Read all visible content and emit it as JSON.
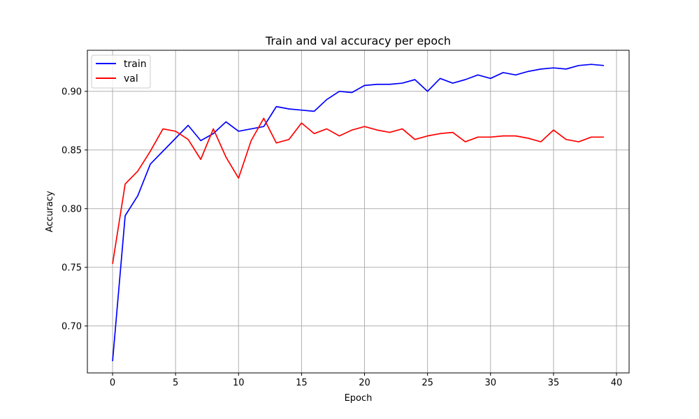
{
  "chart_data": {
    "type": "line",
    "title": "Train and val accuracy per epoch",
    "xlabel": "Epoch",
    "ylabel": "Accuracy",
    "xlim": [
      -2,
      41
    ],
    "ylim": [
      0.66,
      0.935
    ],
    "xticks": [
      0,
      5,
      10,
      15,
      20,
      25,
      30,
      35,
      40
    ],
    "yticks": [
      0.7,
      0.75,
      0.8,
      0.85,
      0.9
    ],
    "ytick_labels": [
      "0.70",
      "0.75",
      "0.80",
      "0.85",
      "0.90"
    ],
    "grid": true,
    "legend_position": "upper-left",
    "x": [
      0,
      1,
      2,
      3,
      4,
      5,
      6,
      7,
      8,
      9,
      10,
      11,
      12,
      13,
      14,
      15,
      16,
      17,
      18,
      19,
      20,
      21,
      22,
      23,
      24,
      25,
      26,
      27,
      28,
      29,
      30,
      31,
      32,
      33,
      34,
      35,
      36,
      37,
      38,
      39
    ],
    "series": [
      {
        "name": "train",
        "color": "#0000ff",
        "values": [
          0.67,
          0.794,
          0.811,
          0.838,
          0.849,
          0.86,
          0.871,
          0.858,
          0.864,
          0.874,
          0.866,
          0.868,
          0.87,
          0.887,
          0.885,
          0.884,
          0.883,
          0.893,
          0.9,
          0.899,
          0.905,
          0.906,
          0.906,
          0.907,
          0.91,
          0.9,
          0.911,
          0.907,
          0.91,
          0.914,
          0.911,
          0.916,
          0.914,
          0.917,
          0.919,
          0.92,
          0.919,
          0.922,
          0.923,
          0.922
        ]
      },
      {
        "name": "val",
        "color": "#ff0000",
        "values": [
          0.753,
          0.821,
          0.832,
          0.849,
          0.868,
          0.866,
          0.859,
          0.842,
          0.868,
          0.844,
          0.826,
          0.858,
          0.877,
          0.856,
          0.859,
          0.873,
          0.864,
          0.868,
          0.862,
          0.867,
          0.87,
          0.867,
          0.865,
          0.868,
          0.859,
          0.862,
          0.864,
          0.865,
          0.857,
          0.861,
          0.861,
          0.862,
          0.862,
          0.86,
          0.857,
          0.867,
          0.859,
          0.857,
          0.861,
          0.861
        ]
      }
    ]
  }
}
